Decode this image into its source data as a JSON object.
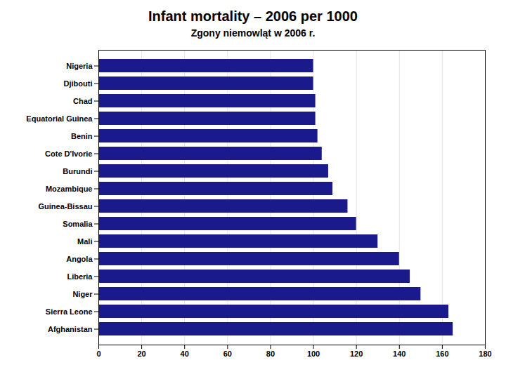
{
  "chart_data": {
    "type": "bar",
    "orientation": "horizontal",
    "title": "Infant mortality – 2006 per 1000",
    "subtitle": "Zgony niemowląt w 2006 r.",
    "categories": [
      "Nigeria",
      "Djibouti",
      "Chad",
      "Equatorial Guinea",
      "Benin",
      "Cote D'Ivorie",
      "Burundi",
      "Mozambique",
      "Guinea-Bissau",
      "Somalia",
      "Mali",
      "Angola",
      "Liberia",
      "Niger",
      "Sierra Leone",
      "Afghanistan"
    ],
    "values": [
      100,
      100,
      101,
      101,
      102,
      104,
      107,
      109,
      116,
      120,
      130,
      140,
      145,
      150,
      163,
      165
    ],
    "color": "#1a1a8c",
    "xlim": [
      0,
      180
    ],
    "xticks": [
      0,
      20,
      40,
      60,
      80,
      100,
      120,
      140,
      160,
      180
    ],
    "grid": true
  }
}
